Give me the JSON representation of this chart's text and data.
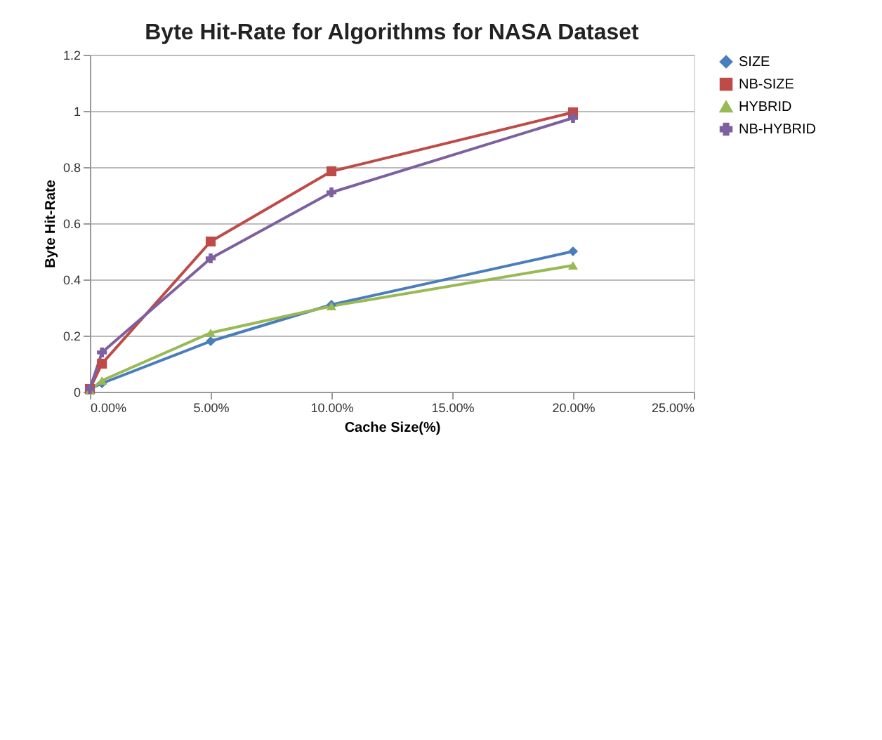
{
  "chart_data": {
    "type": "line",
    "title": "Byte Hit-Rate for Algorithms for NASA Dataset",
    "xlabel": "Cache Size(%)",
    "ylabel": "Byte Hit-Rate",
    "x": [
      0,
      0.5,
      5,
      10,
      20
    ],
    "series": [
      {
        "name": "SIZE",
        "color": "#4a7ebb",
        "marker": "diamond",
        "values": [
          0.01,
          0.03,
          0.18,
          0.31,
          0.5
        ]
      },
      {
        "name": "NB-SIZE",
        "color": "#be4b48",
        "marker": "square",
        "values": [
          0.01,
          0.1,
          0.535,
          0.785,
          0.995
        ]
      },
      {
        "name": "HYBRID",
        "color": "#98b954",
        "marker": "triangle",
        "values": [
          0.005,
          0.04,
          0.21,
          0.305,
          0.45
        ]
      },
      {
        "name": "NB-HYBRID",
        "color": "#7d60a0",
        "marker": "cross",
        "values": [
          0.01,
          0.14,
          0.475,
          0.71,
          0.975
        ]
      }
    ],
    "xlim": [
      0,
      25
    ],
    "xticks": [
      {
        "value": 0,
        "label": "0.00%"
      },
      {
        "value": 5,
        "label": "5.00%"
      },
      {
        "value": 10,
        "label": "10.00%"
      },
      {
        "value": 15,
        "label": "15.00%"
      },
      {
        "value": 20,
        "label": "20.00%"
      },
      {
        "value": 25,
        "label": "25.00%"
      }
    ],
    "ylim": [
      0,
      1.2
    ],
    "yticks": [
      0,
      0.2,
      0.4,
      0.6,
      0.8,
      1,
      1.2
    ],
    "grid": "y",
    "legend": "right",
    "line_style": "solid"
  }
}
